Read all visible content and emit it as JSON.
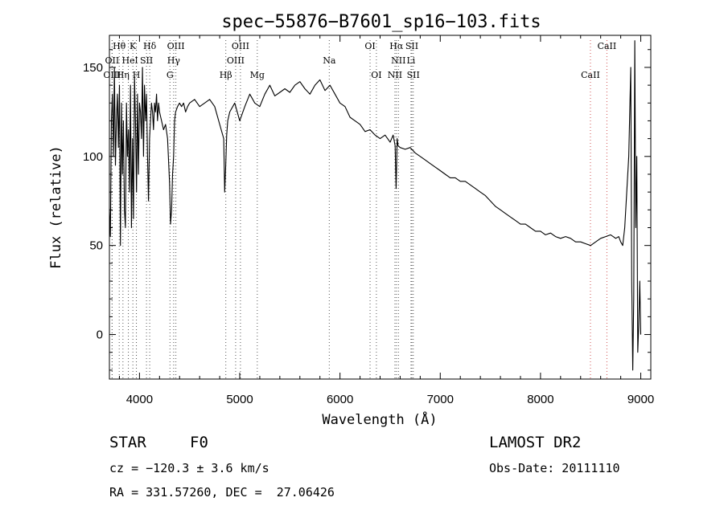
{
  "chart_data": {
    "type": "line",
    "title": "spec−55876−B7601_sp16−103.fits",
    "xlabel": "Wavelength (Å)",
    "ylabel": "Flux (relative)",
    "xlim": [
      3700,
      9100
    ],
    "ylim": [
      -25,
      168
    ],
    "xticks": [
      4000,
      5000,
      6000,
      7000,
      8000,
      9000
    ],
    "yticks": [
      0,
      50,
      100,
      150
    ],
    "grid": false,
    "series": [
      {
        "x": [
          3700,
          3710,
          3720,
          3730,
          3740,
          3750,
          3760,
          3770,
          3780,
          3790,
          3800,
          3810,
          3820,
          3830,
          3840,
          3850,
          3860,
          3870,
          3880,
          3890,
          3900,
          3910,
          3920,
          3930,
          3940,
          3950,
          3960,
          3970,
          3980,
          3990,
          4000,
          4010,
          4020,
          4030,
          4040,
          4050,
          4060,
          4070,
          4080,
          4090,
          4100,
          4110,
          4120,
          4130,
          4140,
          4150,
          4160,
          4170,
          4180,
          4190,
          4200,
          4220,
          4240,
          4260,
          4280,
          4300,
          4310,
          4320,
          4330,
          4340,
          4350,
          4360,
          4380,
          4400,
          4420,
          4440,
          4460,
          4480,
          4500,
          4550,
          4600,
          4650,
          4700,
          4750,
          4800,
          4840,
          4850,
          4860,
          4870,
          4880,
          4900,
          4950,
          5000,
          5050,
          5100,
          5150,
          5200,
          5250,
          5300,
          5350,
          5400,
          5450,
          5500,
          5550,
          5600,
          5650,
          5700,
          5750,
          5800,
          5850,
          5900,
          5950,
          6000,
          6050,
          6100,
          6150,
          6200,
          6250,
          6300,
          6350,
          6400,
          6450,
          6500,
          6530,
          6550,
          6560,
          6563,
          6570,
          6580,
          6600,
          6650,
          6700,
          6750,
          6800,
          6850,
          6900,
          6950,
          7000,
          7050,
          7100,
          7150,
          7200,
          7250,
          7300,
          7350,
          7400,
          7450,
          7500,
          7550,
          7600,
          7650,
          7700,
          7750,
          7800,
          7850,
          7900,
          7950,
          8000,
          8050,
          8100,
          8150,
          8200,
          8250,
          8300,
          8350,
          8400,
          8450,
          8500,
          8550,
          8600,
          8650,
          8700,
          8750,
          8780,
          8800,
          8820,
          8840,
          8860,
          8880,
          8900,
          8910,
          8920,
          8930,
          8940,
          8950,
          8960,
          8970,
          8980,
          8990,
          9000
        ],
        "values": [
          70,
          55,
          120,
          135,
          100,
          150,
          95,
          120,
          135,
          105,
          140,
          50,
          130,
          90,
          120,
          70,
          60,
          130,
          100,
          115,
          80,
          140,
          60,
          110,
          65,
          145,
          120,
          80,
          135,
          90,
          130,
          125,
          110,
          150,
          100,
          140,
          120,
          135,
          100,
          75,
          110,
          120,
          130,
          125,
          115,
          130,
          125,
          135,
          120,
          130,
          125,
          120,
          115,
          118,
          110,
          85,
          62,
          70,
          90,
          100,
          120,
          125,
          128,
          130,
          128,
          130,
          125,
          128,
          130,
          132,
          128,
          130,
          132,
          128,
          118,
          110,
          80,
          95,
          112,
          120,
          125,
          130,
          120,
          128,
          135,
          130,
          128,
          135,
          140,
          134,
          136,
          138,
          136,
          140,
          142,
          138,
          135,
          140,
          143,
          137,
          140,
          135,
          130,
          128,
          122,
          120,
          118,
          114,
          115,
          112,
          110,
          112,
          108,
          112,
          106,
          82,
          90,
          110,
          106,
          105,
          104,
          105,
          102,
          100,
          98,
          96,
          94,
          92,
          90,
          88,
          88,
          86,
          86,
          84,
          82,
          80,
          78,
          75,
          72,
          70,
          68,
          66,
          64,
          62,
          62,
          60,
          58,
          58,
          56,
          57,
          55,
          54,
          55,
          54,
          52,
          52,
          51,
          50,
          52,
          54,
          55,
          56,
          54,
          55,
          52,
          50,
          60,
          80,
          100,
          150,
          30,
          -20,
          20,
          165,
          60,
          100,
          -10,
          5,
          30,
          0
        ]
      }
    ],
    "annotations": [
      {
        "text": "Hθ",
        "x": 3798
      },
      {
        "text": "K",
        "x": 3934
      },
      {
        "text": "Hδ",
        "x": 4102
      },
      {
        "text": "OIII",
        "x": 4363
      },
      {
        "text": "OIII",
        "x": 5007
      },
      {
        "text": "OI",
        "x": 6300
      },
      {
        "text": "Hα",
        "x": 6563
      },
      {
        "text": "SII",
        "x": 6717
      },
      {
        "text": "CaII",
        "x": 8662
      },
      {
        "text": "OII",
        "x": 3727
      },
      {
        "text": "He",
        "x": 3889
      },
      {
        "text": "I",
        "x": 3969
      },
      {
        "text": "SII",
        "x": 4070
      },
      {
        "text": "Hγ",
        "x": 4341
      },
      {
        "text": "OIII",
        "x": 4959
      },
      {
        "text": "Na",
        "x": 5893
      },
      {
        "text": "NII",
        "x": 6583
      },
      {
        "text": "Li",
        "x": 6708
      },
      {
        "text": "CaII",
        "x": 8498
      },
      {
        "text": "OIII",
        "x": 3727
      },
      {
        "text": "Hη",
        "x": 3835
      },
      {
        "text": "H",
        "x": 3969
      },
      {
        "text": "G",
        "x": 4304
      },
      {
        "text": "Hβ",
        "x": 4861
      },
      {
        "text": "Mg",
        "x": 5175
      },
      {
        "text": "OI",
        "x": 6363
      },
      {
        "text": "NII",
        "x": 6548
      },
      {
        "text": "SII",
        "x": 6731
      }
    ]
  },
  "info": {
    "object_class": "STAR",
    "subclass": "F0",
    "survey": "LAMOST DR2",
    "cz": "cz = −120.3 ± 3.6 km/s",
    "obs_date": "Obs-Date: 20111110",
    "radec": "RA = 331.57260, DEC =  27.06426"
  }
}
